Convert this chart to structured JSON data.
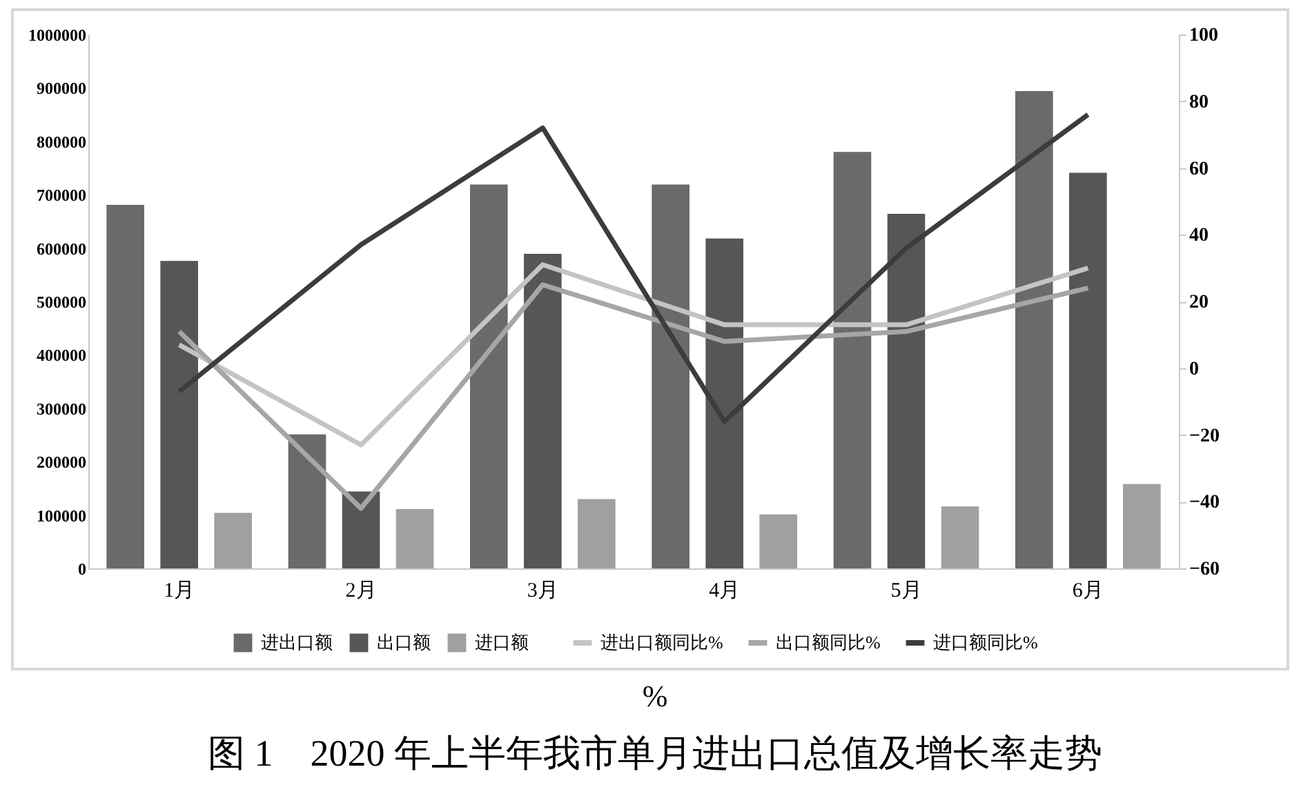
{
  "chart_data": {
    "type": "bar",
    "categories": [
      "1月",
      "2月",
      "3月",
      "4月",
      "5月",
      "6月"
    ],
    "series": [
      {
        "name": "进出口额",
        "type": "bar",
        "color": "#6a6a6a",
        "values": [
          681000,
          251000,
          719000,
          719000,
          780000,
          894000
        ]
      },
      {
        "name": "出口额",
        "type": "bar",
        "color": "#565656",
        "values": [
          576000,
          144000,
          589000,
          618000,
          664000,
          741000
        ]
      },
      {
        "name": "进口额",
        "type": "bar",
        "color": "#a0a0a0",
        "values": [
          104000,
          111000,
          130000,
          101000,
          116000,
          158000
        ]
      },
      {
        "name": "进出口额同比%",
        "type": "line",
        "axis": "y2",
        "color": "#c4c4c4",
        "values": [
          7,
          -23,
          31,
          13,
          13,
          30
        ]
      },
      {
        "name": "出口额同比%",
        "type": "line",
        "axis": "y2",
        "color": "#a6a6a6",
        "values": [
          11,
          -42,
          25,
          8,
          11,
          24
        ]
      },
      {
        "name": "进口额同比%",
        "type": "line",
        "axis": "y2",
        "color": "#3c3c3c",
        "values": [
          -7,
          37,
          72,
          -16,
          36,
          76
        ]
      }
    ],
    "ylim": [
      0,
      1000000
    ],
    "yticks": [
      0,
      100000,
      200000,
      300000,
      400000,
      500000,
      600000,
      700000,
      800000,
      900000,
      1000000
    ],
    "y2lim": [
      -60,
      100
    ],
    "y2ticks": [
      -60,
      -40,
      -20,
      0,
      20,
      40,
      60,
      80,
      100
    ],
    "legend": "bottom",
    "line_style": "solid",
    "annotations": [
      "%"
    ],
    "title": "图 1　2020 年上半年我市单月进出口总值及增长率走势"
  }
}
